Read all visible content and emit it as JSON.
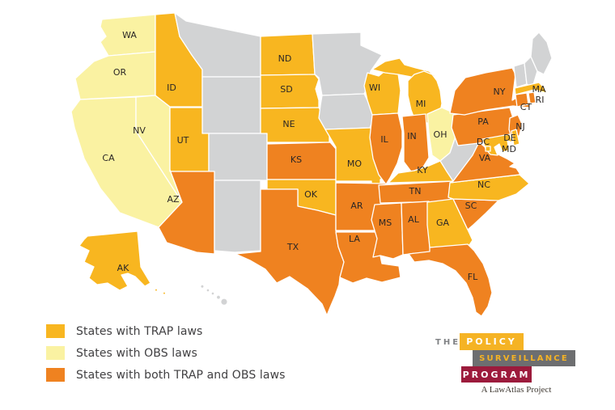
{
  "colors": {
    "trap": "#F8B620",
    "obs": "#FAF2A2",
    "both": "#EF8220",
    "none": "#D2D3D4",
    "border": "#ffffff",
    "label_text": "#2b2726",
    "background": "#ffffff"
  },
  "legend": {
    "items": [
      {
        "key": "trap",
        "label": "States with TRAP laws",
        "color": "#F8B620"
      },
      {
        "key": "obs",
        "label": "States with OBS laws",
        "color": "#FAF2A2"
      },
      {
        "key": "both",
        "label": "States with both TRAP and OBS laws",
        "color": "#EF8220"
      }
    ]
  },
  "logo": {
    "the": "THE",
    "line1": "POLICY",
    "line2": "SURVEILLANCE",
    "line3": "PROGRAM",
    "tagline": "A LawAtlas Project",
    "colors": {
      "gold": "#F5B324",
      "gray": "#6D6E70",
      "crimson": "#9C1B3C",
      "the_text": "#808285"
    }
  },
  "map": {
    "states": [
      {
        "id": "AK",
        "label": "AK",
        "category": "trap"
      },
      {
        "id": "HI",
        "label": "",
        "category": "none"
      },
      {
        "id": "WA",
        "label": "WA",
        "category": "obs"
      },
      {
        "id": "OR",
        "label": "OR",
        "category": "obs"
      },
      {
        "id": "CA",
        "label": "CA",
        "category": "obs"
      },
      {
        "id": "NV",
        "label": "NV",
        "category": "obs"
      },
      {
        "id": "ID",
        "label": "ID",
        "category": "trap"
      },
      {
        "id": "MT",
        "label": "",
        "category": "none"
      },
      {
        "id": "WY",
        "label": "",
        "category": "none"
      },
      {
        "id": "UT",
        "label": "UT",
        "category": "trap"
      },
      {
        "id": "CO",
        "label": "",
        "category": "none"
      },
      {
        "id": "AZ",
        "label": "AZ",
        "category": "both"
      },
      {
        "id": "NM",
        "label": "",
        "category": "none"
      },
      {
        "id": "ND",
        "label": "ND",
        "category": "trap"
      },
      {
        "id": "SD",
        "label": "SD",
        "category": "trap"
      },
      {
        "id": "NE",
        "label": "NE",
        "category": "trap"
      },
      {
        "id": "KS",
        "label": "KS",
        "category": "both"
      },
      {
        "id": "OK",
        "label": "OK",
        "category": "trap"
      },
      {
        "id": "TX",
        "label": "TX",
        "category": "both"
      },
      {
        "id": "MN",
        "label": "",
        "category": "none"
      },
      {
        "id": "IA",
        "label": "",
        "category": "none"
      },
      {
        "id": "MO",
        "label": "MO",
        "category": "trap"
      },
      {
        "id": "AR",
        "label": "AR",
        "category": "both"
      },
      {
        "id": "LA",
        "label": "LA",
        "category": "both"
      },
      {
        "id": "WI",
        "label": "WI",
        "category": "trap"
      },
      {
        "id": "MI",
        "label": "MI",
        "category": "trap"
      },
      {
        "id": "IL",
        "label": "IL",
        "category": "both"
      },
      {
        "id": "IN",
        "label": "IN",
        "category": "both"
      },
      {
        "id": "OH",
        "label": "OH",
        "category": "obs"
      },
      {
        "id": "KY",
        "label": "KY",
        "category": "trap"
      },
      {
        "id": "TN",
        "label": "TN",
        "category": "both"
      },
      {
        "id": "MS",
        "label": "MS",
        "category": "both"
      },
      {
        "id": "AL",
        "label": "AL",
        "category": "both"
      },
      {
        "id": "GA",
        "label": "GA",
        "category": "trap"
      },
      {
        "id": "FL",
        "label": "FL",
        "category": "both"
      },
      {
        "id": "SC",
        "label": "SC",
        "category": "both"
      },
      {
        "id": "NC",
        "label": "NC",
        "category": "trap"
      },
      {
        "id": "WV",
        "label": "",
        "category": "none"
      },
      {
        "id": "VA",
        "label": "VA",
        "category": "both"
      },
      {
        "id": "PA",
        "label": "PA",
        "category": "both"
      },
      {
        "id": "NY",
        "label": "NY",
        "category": "both"
      },
      {
        "id": "VT",
        "label": "",
        "category": "none"
      },
      {
        "id": "NH",
        "label": "",
        "category": "none"
      },
      {
        "id": "ME",
        "label": "",
        "category": "none"
      },
      {
        "id": "MA",
        "label": "MA",
        "category": "trap"
      },
      {
        "id": "CT",
        "label": "CT",
        "category": "both"
      },
      {
        "id": "RI",
        "label": "RI",
        "category": "both"
      },
      {
        "id": "NJ",
        "label": "NJ",
        "category": "both"
      },
      {
        "id": "DE",
        "label": "DE",
        "category": "trap"
      },
      {
        "id": "MD",
        "label": "MD",
        "category": "trap"
      },
      {
        "id": "DC",
        "label": "DC",
        "category": "trap"
      }
    ]
  }
}
